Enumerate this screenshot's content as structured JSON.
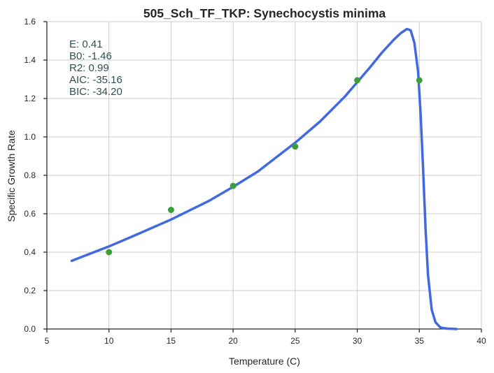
{
  "chart_data": {
    "type": "scatter",
    "title": "505_Sch_TF_TKP: Synechocystis minima",
    "xlabel": "Temperature (C)",
    "ylabel": "Specific Growth Rate",
    "xlim": [
      5,
      40
    ],
    "ylim": [
      0.0,
      1.6
    ],
    "xticks": [
      5,
      10,
      15,
      20,
      25,
      30,
      35,
      40
    ],
    "yticks": [
      0.0,
      0.2,
      0.4,
      0.6,
      0.8,
      1.0,
      1.2,
      1.4,
      1.6
    ],
    "grid": true,
    "colors": {
      "points": "#3c9f3c",
      "curve": "#4169e1",
      "grid": "#cccccc",
      "annotation": "#2f4f4f"
    },
    "series": [
      {
        "kind": "points",
        "x": [
          10,
          15,
          20,
          25,
          30,
          35
        ],
        "y": [
          0.4,
          0.62,
          0.745,
          0.95,
          1.295,
          1.295
        ]
      },
      {
        "kind": "fitted-curve",
        "x": [
          7,
          8,
          10,
          12,
          15,
          18,
          20,
          22,
          25,
          27,
          29,
          31,
          32,
          33,
          33.5,
          34,
          34.3,
          34.6,
          34.9,
          35.1,
          35.3,
          35.5,
          35.7,
          36.0,
          36.3,
          36.7,
          37.2,
          38
        ],
        "y": [
          0.355,
          0.38,
          0.43,
          0.485,
          0.57,
          0.665,
          0.74,
          0.82,
          0.97,
          1.08,
          1.21,
          1.36,
          1.44,
          1.51,
          1.54,
          1.562,
          1.555,
          1.49,
          1.34,
          1.12,
          0.84,
          0.52,
          0.28,
          0.1,
          0.035,
          0.008,
          0.002,
          0.0
        ]
      }
    ],
    "annotations": [
      {
        "text": "E:  0.41"
      },
      {
        "text": "B0:  -1.46"
      },
      {
        "text": "R2:  0.99"
      },
      {
        "text": "AIC: -35.16"
      },
      {
        "text": "BIC: -34.20"
      }
    ]
  }
}
